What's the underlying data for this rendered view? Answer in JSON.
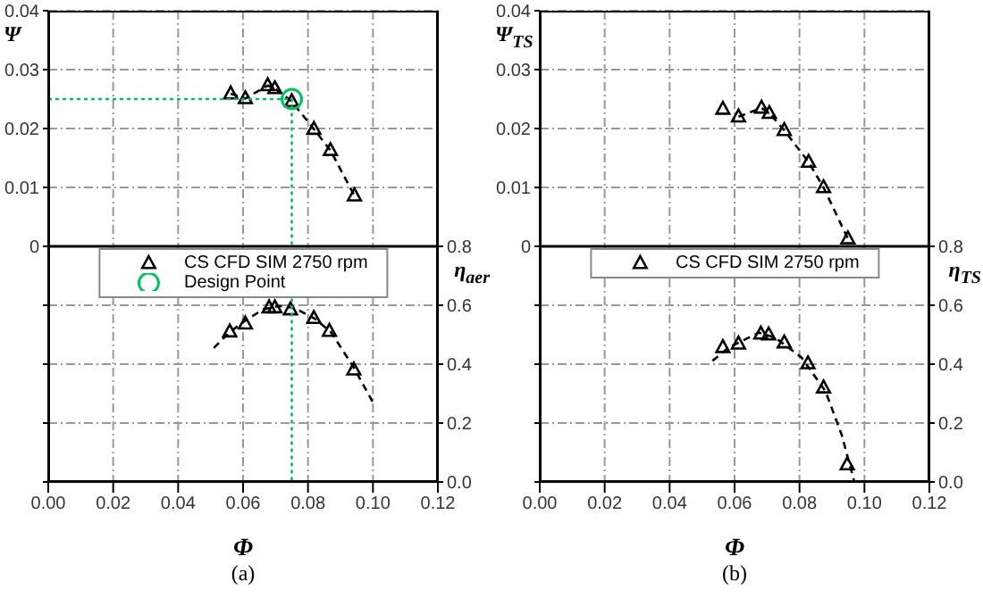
{
  "chart_data": [
    {
      "type": "scatter",
      "xlabel": "Φ",
      "ylabel": "Ψ",
      "y2label": "η$_{aer}$",
      "annotations": [
        "(a)"
      ],
      "xlim": [
        0,
        0.12
      ],
      "xticks": [
        {
          "value": 0,
          "label": "0.00"
        },
        {
          "value": 0.02,
          "label": "0.02"
        },
        {
          "value": 0.04,
          "label": "0.04"
        },
        {
          "value": 0.06,
          "label": "0.06"
        },
        {
          "value": 0.08,
          "label": "0.08"
        },
        {
          "value": 0.1,
          "label": "0.10"
        },
        {
          "value": 0.12,
          "label": "0.12"
        }
      ],
      "ylim": [
        -0.04,
        0.04
      ],
      "yticks": [
        {
          "value": -0.04,
          "label": null
        },
        {
          "value": -0.03,
          "label": null
        },
        {
          "value": -0.02,
          "label": null
        },
        {
          "value": -0.01,
          "label": null
        },
        0,
        0.01,
        0.02,
        0.03,
        0.04
      ],
      "y2lim": [
        0,
        1.6
      ],
      "y2ticks": [
        {
          "value": 0,
          "label": "0.0"
        },
        0.2,
        0.4,
        0.6,
        0.8
      ],
      "grid": true,
      "legend": "center",
      "ref_lines": [
        {
          "axis": "y",
          "value": 0,
          "color": "#000000"
        }
      ],
      "series": [
        {
          "name": "CS CFD SIM 2750 rpm",
          "type": "scatter",
          "marker": "triangle",
          "color": "#000000",
          "x": [
            0.0562,
            0.0607,
            0.0676,
            0.0698,
            0.075,
            0.0818,
            0.0869,
            0.0943
          ],
          "values": [
            0.0259,
            0.0251,
            0.0273,
            0.0268,
            0.0246,
            0.0199,
            0.0163,
            0.0086
          ]
        },
        {
          "type": "line",
          "line_style": "dashed",
          "marker": "none",
          "color": "#000000",
          "x": [
            0.0562,
            0.0607,
            0.0676,
            0.0698,
            0.075,
            0.0818,
            0.0869,
            0.0943
          ],
          "values": [
            0.0259,
            0.0251,
            0.0273,
            0.0268,
            0.0246,
            0.0199,
            0.0163,
            0.0086
          ]
        },
        {
          "type": "scatter",
          "axis": "y2",
          "marker": "triangle",
          "color": "#000000",
          "x": [
            0.0559,
            0.0607,
            0.068,
            0.0698,
            0.0746,
            0.0818,
            0.0866,
            0.0941
          ],
          "values": [
            0.51,
            0.537,
            0.592,
            0.592,
            0.585,
            0.556,
            0.512,
            0.381
          ]
        },
        {
          "type": "line",
          "axis": "y2",
          "line_style": "dashed",
          "marker": "none",
          "color": "#000000",
          "x": [
            0.051,
            0.056,
            0.061,
            0.066,
            0.071,
            0.076,
            0.082,
            0.087,
            0.094,
            0.1
          ],
          "values": [
            0.455,
            0.51,
            0.55,
            0.585,
            0.598,
            0.59,
            0.555,
            0.51,
            0.39,
            0.27
          ]
        },
        {
          "type": "line",
          "line_style": "dotted",
          "marker": "none",
          "color": "#00c060",
          "x": [
            0,
            0.075,
            0.075
          ],
          "values": [
            0.025,
            0.025,
            -0.04
          ]
        },
        {
          "name": "Design Point",
          "type": "scatter",
          "marker": "circle",
          "color": "#00c060",
          "x": [
            0.075
          ],
          "values": [
            0.025
          ]
        }
      ]
    },
    {
      "type": "scatter",
      "xlabel": "Φ",
      "ylabel": "Ψ$_{TS}$",
      "y2label": "η$_{TS}$",
      "annotations": [
        "(b)"
      ],
      "xlim": [
        0,
        0.12
      ],
      "xticks": [
        {
          "value": 0,
          "label": "0.00"
        },
        {
          "value": 0.02,
          "label": "0.02"
        },
        {
          "value": 0.04,
          "label": "0.04"
        },
        {
          "value": 0.06,
          "label": "0.06"
        },
        {
          "value": 0.08,
          "label": "0.08"
        },
        {
          "value": 0.1,
          "label": "0.10"
        },
        {
          "value": 0.12,
          "label": "0.12"
        }
      ],
      "ylim": [
        -0.04,
        0.04
      ],
      "yticks": [
        {
          "value": -0.04,
          "label": null
        },
        {
          "value": -0.03,
          "label": null
        },
        {
          "value": -0.02,
          "label": null
        },
        {
          "value": -0.01,
          "label": null
        },
        0,
        0.01,
        0.02,
        0.03,
        0.04
      ],
      "y2lim": [
        0,
        1.6
      ],
      "y2ticks": [
        {
          "value": 0,
          "label": "0.0"
        },
        0.2,
        0.4,
        0.6,
        0.8
      ],
      "grid": true,
      "legend": "center",
      "ref_lines": [
        {
          "axis": "y",
          "value": 0,
          "color": "#000000"
        }
      ],
      "series": [
        {
          "name": "CS CFD SIM 2750 rpm",
          "type": "scatter",
          "marker": "triangle",
          "color": "#000000",
          "x": [
            0.0564,
            0.0612,
            0.0683,
            0.0707,
            0.0753,
            0.0828,
            0.0874,
            0.0949
          ],
          "values": [
            0.0233,
            0.022,
            0.0235,
            0.0226,
            0.0197,
            0.0143,
            0.01,
            0.0013
          ]
        },
        {
          "type": "line",
          "line_style": "dashed",
          "marker": "none",
          "color": "#000000",
          "x": [
            0.0612,
            0.0683,
            0.0707,
            0.0753,
            0.0828,
            0.0874,
            0.0949
          ],
          "values": [
            0.022,
            0.0235,
            0.0226,
            0.0197,
            0.0143,
            0.01,
            0.0013
          ]
        },
        {
          "type": "scatter",
          "axis": "y2",
          "marker": "triangle",
          "color": "#000000",
          "x": [
            0.0564,
            0.0612,
            0.0681,
            0.0705,
            0.0753,
            0.0826,
            0.0874,
            0.0947
          ],
          "values": [
            0.457,
            0.469,
            0.503,
            0.5,
            0.473,
            0.402,
            0.32,
            0.059
          ]
        },
        {
          "type": "line",
          "axis": "y2",
          "line_style": "dashed",
          "marker": "none",
          "color": "#000000",
          "x": [
            0.0532,
            0.058,
            0.0625,
            0.0675,
            0.0725,
            0.0806,
            0.088,
            0.093,
            0.0969
          ],
          "values": [
            0.411,
            0.455,
            0.48,
            0.507,
            0.49,
            0.423,
            0.308,
            0.16,
            0
          ]
        }
      ]
    }
  ]
}
